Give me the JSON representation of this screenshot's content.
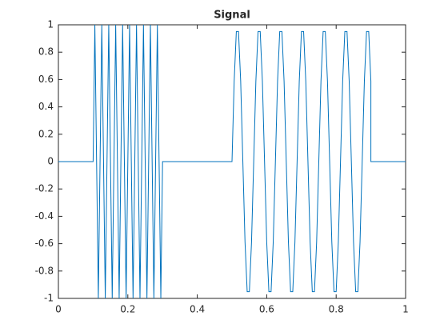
{
  "chart_data": {
    "type": "line",
    "title": "Signal",
    "x": [
      0,
      0.1,
      0.105,
      0.11,
      0.115,
      0.12,
      0.125,
      0.13,
      0.135,
      0.14,
      0.145,
      0.15,
      0.155,
      0.16,
      0.165,
      0.17,
      0.175,
      0.18,
      0.185,
      0.19,
      0.195,
      0.2,
      0.205,
      0.21,
      0.215,
      0.22,
      0.225,
      0.23,
      0.235,
      0.24,
      0.245,
      0.25,
      0.255,
      0.26,
      0.265,
      0.27,
      0.275,
      0.28,
      0.285,
      0.29,
      0.295,
      0.3,
      0.5,
      0.50625,
      0.5125,
      0.51875,
      0.525,
      0.53125,
      0.5375,
      0.54375,
      0.55,
      0.55625,
      0.5625,
      0.56875,
      0.575,
      0.58125,
      0.5875,
      0.59375,
      0.6,
      0.60625,
      0.6125,
      0.61875,
      0.625,
      0.63125,
      0.6375,
      0.64375,
      0.65,
      0.65625,
      0.6625,
      0.66875,
      0.675,
      0.68125,
      0.6875,
      0.69375,
      0.7,
      0.70625,
      0.7125,
      0.71875,
      0.725,
      0.73125,
      0.7375,
      0.74375,
      0.75,
      0.75625,
      0.7625,
      0.76875,
      0.775,
      0.78125,
      0.7875,
      0.79375,
      0.8,
      0.80625,
      0.8125,
      0.81875,
      0.825,
      0.83125,
      0.8375,
      0.84375,
      0.85,
      0.85625,
      0.8625,
      0.86875,
      0.875,
      0.88125,
      0.8875,
      0.89375,
      0.9,
      0.9,
      1
    ],
    "values": [
      0,
      0,
      1,
      0,
      -1,
      0,
      1,
      0,
      -1,
      0,
      1,
      0,
      -1,
      0,
      1,
      0,
      -1,
      0,
      1,
      0,
      -1,
      0,
      1,
      0,
      -1,
      0,
      1,
      0,
      -1,
      0,
      1,
      0,
      -1,
      0,
      1,
      0,
      -1,
      0,
      1,
      0,
      -1,
      0,
      0,
      0.5878,
      0.9511,
      0.9511,
      0.5878,
      0,
      -0.5878,
      -0.9511,
      -0.9511,
      -0.5878,
      0,
      0.5878,
      0.9511,
      0.9511,
      0.5878,
      0,
      -0.5878,
      -0.9511,
      -0.9511,
      -0.5878,
      0,
      0.5878,
      0.9511,
      0.9511,
      0.5878,
      0,
      -0.5878,
      -0.9511,
      -0.9511,
      -0.5878,
      0,
      0.5878,
      0.9511,
      0.9511,
      0.5878,
      0,
      -0.5878,
      -0.9511,
      -0.9511,
      -0.5878,
      0,
      0.5878,
      0.9511,
      0.9511,
      0.5878,
      0,
      -0.5878,
      -0.9511,
      -0.9511,
      -0.5878,
      0,
      0.5878,
      0.9511,
      0.9511,
      0.5878,
      0,
      -0.5878,
      -0.9511,
      -0.9511,
      -0.5878,
      0,
      0.5878,
      0.9511,
      0.9511,
      0.5878,
      0,
      0
    ],
    "color": "#0072bd",
    "xlim": [
      0,
      1
    ],
    "xticks": [
      0,
      0.2,
      0.4,
      0.6,
      0.8,
      1
    ],
    "ylim": [
      -1,
      1
    ],
    "yticks": [
      -1,
      -0.8,
      -0.6,
      -0.4,
      -0.2,
      0,
      0.2,
      0.4,
      0.6,
      0.8,
      1
    ]
  }
}
